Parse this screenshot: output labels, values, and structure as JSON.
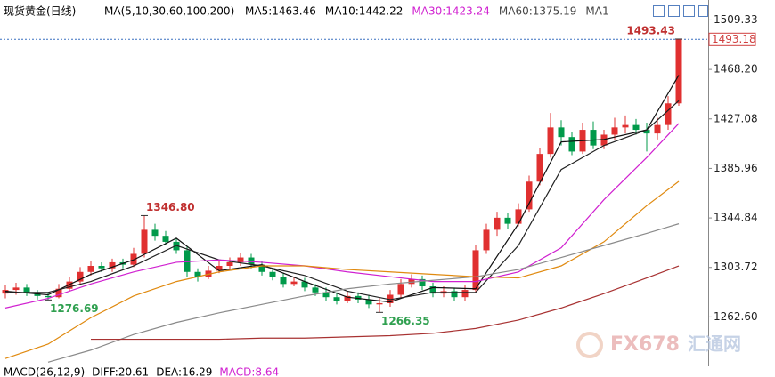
{
  "chart_data": {
    "type": "candlestick",
    "title": "现货黄金(日线)",
    "indicator": "MA(5,10,30,60,100,200)",
    "open": [
      1282,
      1285,
      1287,
      1283,
      1280,
      1279,
      1286,
      1292,
      1300,
      1305,
      1303,
      1308,
      1306,
      1315,
      1335,
      1330,
      1325,
      1318,
      1300,
      1296,
      1301,
      1305,
      1308,
      1312,
      1306,
      1300,
      1296,
      1290,
      1292,
      1287,
      1283,
      1279,
      1276,
      1280,
      1277,
      1273,
      1274,
      1281,
      1290,
      1294,
      1288,
      1282,
      1284,
      1279,
      1285,
      1318,
      1335,
      1345,
      1340,
      1352,
      1375,
      1398,
      1420,
      1412,
      1400,
      1418,
      1405,
      1414,
      1420,
      1422,
      1418,
      1415,
      1422,
      1440
    ],
    "high": [
      1289,
      1291,
      1290,
      1285,
      1283,
      1290,
      1296,
      1304,
      1309,
      1308,
      1311,
      1311,
      1320,
      1346.8,
      1340,
      1334,
      1328,
      1321,
      1303,
      1305,
      1309,
      1312,
      1316,
      1315,
      1309,
      1303,
      1299,
      1296,
      1295,
      1290,
      1287,
      1283,
      1284,
      1283,
      1281,
      1278,
      1285,
      1294,
      1298,
      1297,
      1291,
      1288,
      1287,
      1289,
      1322,
      1340,
      1350,
      1349,
      1357,
      1380,
      1403,
      1432,
      1426,
      1416,
      1424,
      1425,
      1418,
      1428,
      1430,
      1427,
      1424,
      1428,
      1446,
      1493.43
    ],
    "low": [
      1278,
      1281,
      1280,
      1277,
      1276.69,
      1278,
      1284,
      1290,
      1297,
      1300,
      1300,
      1303,
      1304,
      1312,
      1326,
      1322,
      1315,
      1296,
      1292,
      1294,
      1299,
      1302,
      1305,
      1303,
      1297,
      1293,
      1287,
      1288,
      1284,
      1280,
      1276,
      1273,
      1274,
      1274,
      1270,
      1266.35,
      1271,
      1278,
      1287,
      1285,
      1279,
      1279,
      1276,
      1276,
      1283,
      1315,
      1330,
      1336,
      1338,
      1350,
      1372,
      1395,
      1405,
      1397,
      1398,
      1402,
      1402,
      1410,
      1415,
      1414,
      1400,
      1410,
      1418,
      1438
    ],
    "close": [
      1285,
      1287,
      1283,
      1280,
      1279,
      1286,
      1292,
      1300,
      1305,
      1303,
      1308,
      1306,
      1315,
      1335,
      1330,
      1325,
      1318,
      1300,
      1296,
      1301,
      1305,
      1308,
      1312,
      1306,
      1300,
      1296,
      1290,
      1292,
      1287,
      1283,
      1279,
      1276,
      1280,
      1277,
      1273,
      1274,
      1281,
      1290,
      1294,
      1288,
      1282,
      1284,
      1279,
      1285,
      1318,
      1335,
      1345,
      1340,
      1352,
      1375,
      1398,
      1420,
      1412,
      1400,
      1418,
      1405,
      1414,
      1420,
      1422,
      1418,
      1415,
      1422,
      1440,
      1493.18
    ],
    "up_color": "#e03030",
    "down_color": "#009a4a",
    "ma_x": [
      0,
      4,
      8,
      12,
      16,
      20,
      24,
      28,
      32,
      36,
      40,
      44,
      48,
      52,
      56,
      60,
      63
    ],
    "series": [
      {
        "name": "MA5:1463.46",
        "color": "#111111",
        "values": [
          1284,
          1281,
          1298,
          1310,
          1328,
          1301,
          1306,
          1292,
          1279,
          1275,
          1287,
          1286,
          1340,
          1408,
          1410,
          1418,
          1463.46
        ]
      },
      {
        "name": "MA10:1442.22",
        "color": "#222222",
        "values": [
          1283,
          1283,
          1292,
          1305,
          1322,
          1310,
          1305,
          1297,
          1284,
          1277,
          1283,
          1283,
          1322,
          1385,
          1405,
          1418,
          1442.22
        ]
      },
      {
        "name": "MA30:1423.24",
        "color": "#d020d0",
        "values": [
          1270,
          1278,
          1290,
          1300,
          1308,
          1310,
          1308,
          1305,
          1300,
          1296,
          1292,
          1292,
          1300,
          1320,
          1360,
          1395,
          1423.24
        ]
      },
      {
        "name": "MA60:1375.19",
        "color": "#e08a10",
        "values": [
          1228,
          1240,
          1262,
          1280,
          1292,
          1300,
          1305,
          1305,
          1302,
          1300,
          1298,
          1296,
          1295,
          1305,
          1325,
          1355,
          1375.19
        ]
      },
      {
        "name": "MA1",
        "color": "#8a8a8a",
        "values": [
          null,
          1225,
          1235,
          1248,
          1258,
          1266,
          1273,
          1280,
          1286,
          1290,
          1293,
          1296,
          1302,
          1312,
          1322,
          1332,
          1340
        ]
      },
      {
        "color": "#a83232",
        "values": [
          null,
          null,
          1244,
          1244,
          1244,
          1244,
          1245,
          1245,
          1246,
          1247,
          1249,
          1253,
          1260,
          1270,
          1282,
          1295,
          1305
        ]
      }
    ],
    "ylim": [
      1223,
      1520
    ],
    "yticks": [
      {
        "value": 1262.6,
        "label": "1262.60"
      },
      1303.72,
      1344.84,
      1385.96,
      1427.08,
      {
        "value": 1468.2,
        "label": "1468.20"
      },
      1509.33
    ],
    "annotations": [
      {
        "value": 1346.8,
        "label": "1346.80"
      },
      {
        "value": 1276.69,
        "label": "1276.69"
      },
      {
        "value": 1266.35,
        "label": "1266.35"
      },
      {
        "value": 1493.43,
        "label": "1493.43"
      }
    ],
    "last_price": {
      "value": 1493.18,
      "label": "1493.18"
    },
    "macd_texts": [
      "MACD(26,12,9)",
      "DIFF:20.61",
      "DEA:16.29",
      "MACD:8.64"
    ],
    "watermark": [
      "FX678",
      "汇通网"
    ]
  }
}
